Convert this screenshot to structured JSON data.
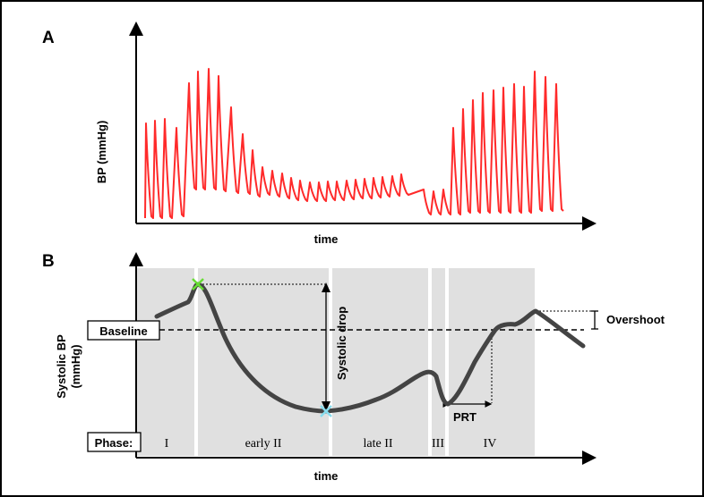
{
  "panel_a": {
    "label": "A",
    "ylabel": "BP (mmHg)",
    "xlabel": "time",
    "trace_color": "#ff2a2a"
  },
  "panel_b": {
    "label": "B",
    "ylabel_line1": "Systolic BP",
    "ylabel_line2": "(mmHg)",
    "xlabel": "time",
    "baseline_label": "Baseline",
    "phase_label": "Phase:",
    "phases": [
      "I",
      "early II",
      "late II",
      "III",
      "IV"
    ],
    "systolic_drop_label": "Systolic drop",
    "overshoot_label": "Overshoot",
    "prt_label": "PRT",
    "phase_bg_color": "#e0e0e0",
    "trace_color": "#444444",
    "peak_marker_color": "#66dd33",
    "trough_marker_color": "#88ddee"
  }
}
